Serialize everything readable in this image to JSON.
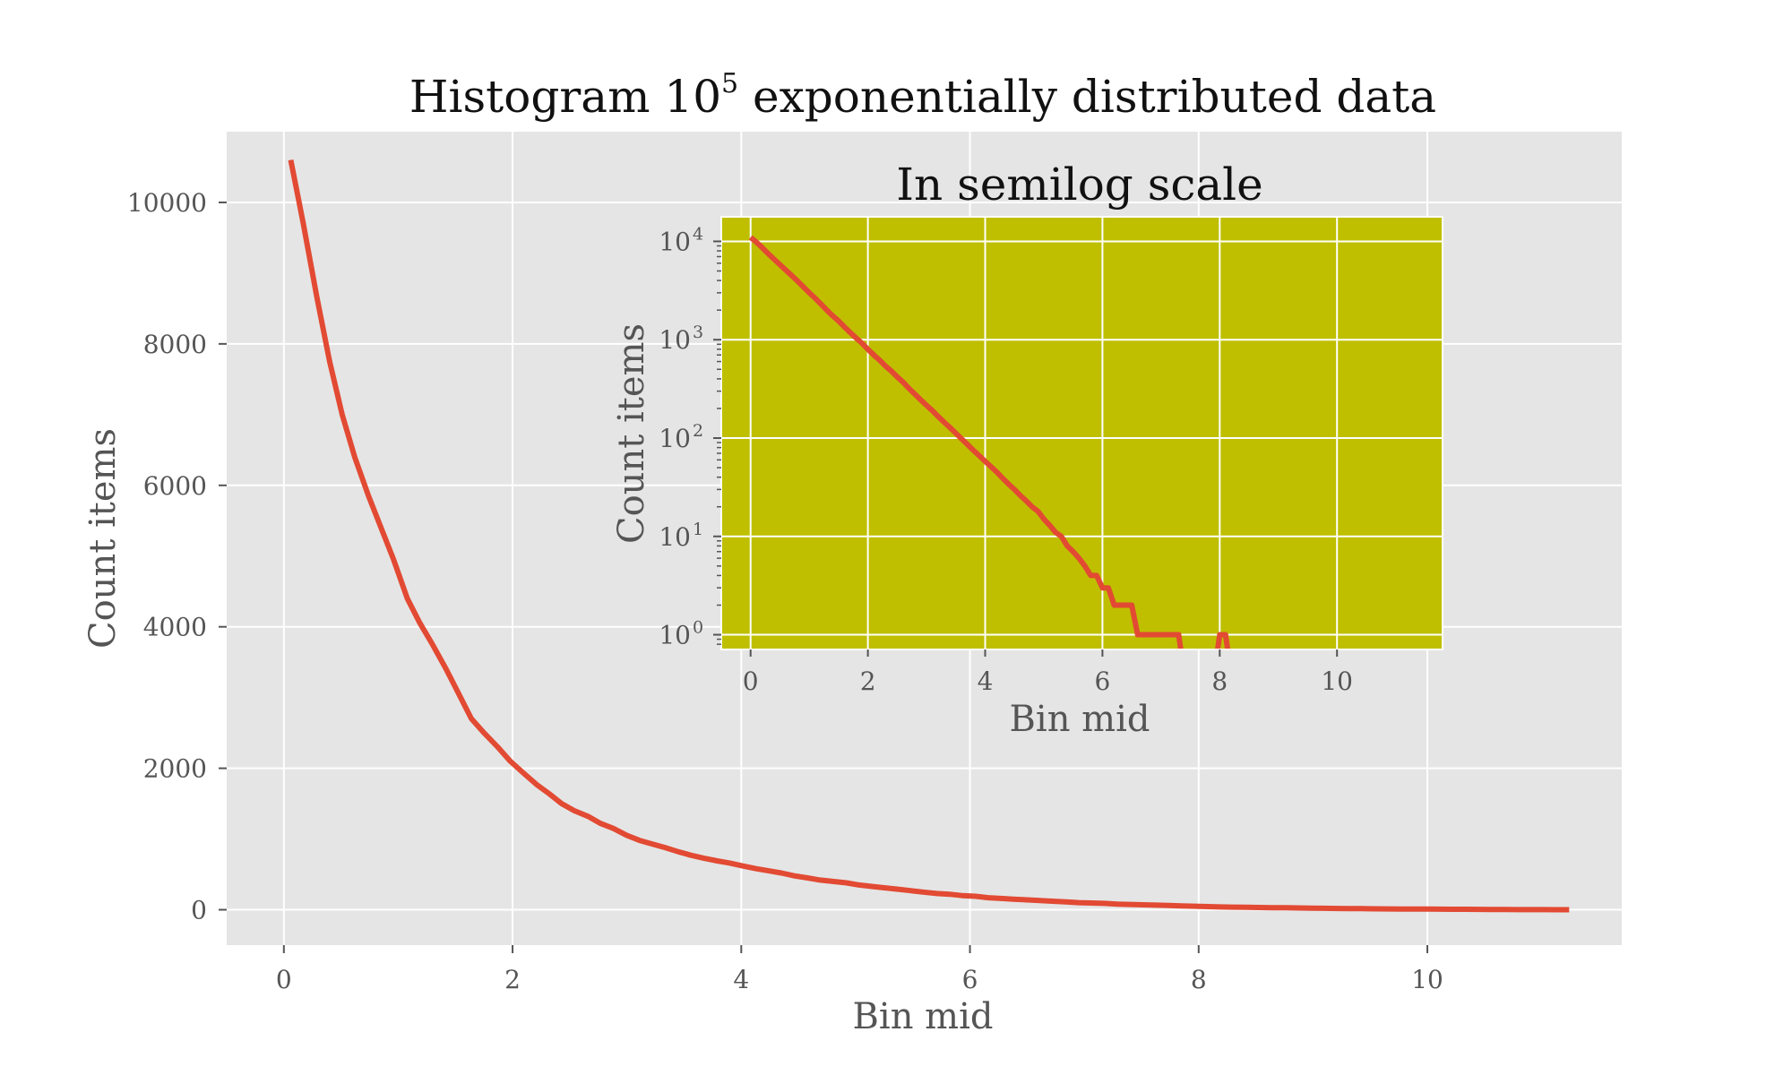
{
  "chart_data": [
    {
      "type": "line",
      "title": "Histogram 10",
      "title_superscript": "5",
      "title_rest": " exponentially distributed data",
      "xlabel": "Bin mid",
      "ylabel": "Count items",
      "xlim": [
        -0.5,
        11.7
      ],
      "ylim": [
        -500,
        11000
      ],
      "x_ticks": [
        0,
        2,
        4,
        6,
        8,
        10
      ],
      "x_tick_labels": [
        "0",
        "2",
        "4",
        "6",
        "8",
        "10"
      ],
      "y_ticks": [
        0,
        2000,
        4000,
        6000,
        8000,
        10000
      ],
      "y_tick_labels": [
        "0",
        "2000",
        "4000",
        "6000",
        "8000",
        "10000"
      ],
      "grid": true,
      "background": "#e5e5e5",
      "line_color": "#e24a33",
      "series": [
        {
          "x": [
            0.06,
            0.17,
            0.29,
            0.4,
            0.51,
            0.62,
            0.74,
            0.85,
            0.96,
            1.08,
            1.19,
            1.3,
            1.42,
            1.53,
            1.64,
            1.75,
            1.87,
            1.98,
            2.09,
            2.21,
            2.32,
            2.43,
            2.54,
            2.66,
            2.77,
            2.88,
            3.0,
            3.11,
            3.22,
            3.33,
            3.45,
            3.56,
            3.67,
            3.79,
            3.9,
            4.01,
            4.13,
            4.24,
            4.35,
            4.46,
            4.58,
            4.69,
            4.8,
            4.92,
            5.03,
            5.14,
            5.25,
            5.37,
            5.48,
            5.59,
            5.71,
            5.82,
            5.93,
            6.05,
            6.16,
            6.27,
            6.38,
            6.5,
            6.61,
            6.72,
            6.84,
            6.95,
            7.06,
            7.17,
            7.29,
            7.4,
            7.51,
            7.63,
            7.74,
            7.85,
            7.97,
            8.08,
            8.19,
            8.3,
            8.42,
            8.53,
            8.64,
            8.76,
            8.87,
            8.98,
            9.09,
            9.21,
            9.32,
            9.43,
            9.55,
            9.66,
            9.77,
            9.89,
            10.0,
            10.11,
            10.22,
            10.34,
            10.45,
            10.56,
            10.68,
            10.79,
            10.9,
            11.01,
            11.13,
            11.24
          ],
          "y": [
            10600,
            9700,
            8650,
            7750,
            7000,
            6400,
            5850,
            5400,
            4950,
            4400,
            4050,
            3750,
            3400,
            3050,
            2700,
            2500,
            2300,
            2100,
            1940,
            1770,
            1640,
            1500,
            1400,
            1320,
            1220,
            1150,
            1050,
            980,
            930,
            880,
            820,
            770,
            730,
            690,
            660,
            620,
            580,
            550,
            520,
            480,
            450,
            420,
            400,
            380,
            350,
            330,
            310,
            290,
            270,
            250,
            230,
            220,
            200,
            190,
            170,
            160,
            150,
            140,
            130,
            120,
            110,
            100,
            95,
            90,
            80,
            75,
            70,
            65,
            60,
            55,
            50,
            45,
            40,
            37,
            35,
            32,
            30,
            28,
            25,
            22,
            20,
            18,
            16,
            15,
            13,
            12,
            11,
            10,
            9,
            8,
            7,
            6,
            5,
            4,
            3,
            2,
            1,
            1,
            0,
            0
          ]
        }
      ]
    },
    {
      "type": "line",
      "title": "In semilog scale",
      "xlabel": "Bin mid",
      "ylabel": "Count items",
      "y_scale": "log",
      "xlim": [
        -0.5,
        11.8
      ],
      "ylim_log10": [
        -0.15,
        4.25
      ],
      "x_ticks": [
        0,
        2,
        4,
        6,
        8,
        10
      ],
      "x_tick_labels": [
        "0",
        "2",
        "4",
        "6",
        "8",
        "10"
      ],
      "y_ticks": [
        1,
        10,
        100,
        1000,
        10000
      ],
      "y_tick_bases": [
        "10",
        "10",
        "10",
        "10",
        "10"
      ],
      "y_tick_exponents": [
        "0",
        "1",
        "2",
        "3",
        "4"
      ],
      "grid": true,
      "background": "#bfbf00",
      "line_color": "#e24a33",
      "series": [
        {
          "x": [
            0.0,
            0.1,
            0.2,
            0.3,
            0.4,
            0.5,
            0.6,
            0.7,
            0.8,
            0.9,
            1.0,
            1.1,
            1.2,
            1.3,
            1.4,
            1.5,
            1.6,
            1.7,
            1.8,
            1.9,
            2.0,
            2.1,
            2.2,
            2.3,
            2.4,
            2.5,
            2.6,
            2.7,
            2.8,
            2.9,
            3.0,
            3.1,
            3.2,
            3.3,
            3.4,
            3.5,
            3.6,
            3.7,
            3.8,
            3.9,
            4.0,
            4.1,
            4.2,
            4.3,
            4.4,
            4.5,
            4.6,
            4.7,
            4.8,
            4.9,
            5.0,
            5.1,
            5.2,
            5.3,
            5.4,
            5.5,
            5.6,
            5.7,
            5.8,
            5.9,
            6.0,
            6.1,
            6.2,
            6.3,
            6.4,
            6.5,
            6.6,
            6.7,
            6.8,
            6.9,
            7.0,
            7.1,
            7.2,
            7.3,
            7.4,
            7.5,
            7.6,
            7.7,
            7.8,
            7.9,
            8.0,
            8.1,
            8.2,
            8.3,
            8.4,
            8.5,
            8.6,
            8.7,
            8.8,
            8.9,
            9.0,
            9.1,
            9.2,
            9.3,
            9.4,
            9.5,
            9.6,
            9.7,
            9.8,
            9.9,
            10.0,
            10.1,
            10.2,
            10.3,
            10.4,
            10.5,
            10.6,
            10.7,
            10.8,
            10.9,
            11.0,
            11.1,
            11.2
          ],
          "y": [
            11000,
            9800,
            8600,
            7500,
            6600,
            5800,
            5100,
            4500,
            3950,
            3450,
            3000,
            2650,
            2300,
            2000,
            1750,
            1550,
            1350,
            1180,
            1040,
            920,
            800,
            700,
            620,
            540,
            480,
            420,
            370,
            320,
            280,
            245,
            215,
            190,
            165,
            145,
            128,
            112,
            98,
            86,
            75,
            66,
            58,
            51,
            45,
            39,
            34,
            30,
            26,
            23,
            20,
            18,
            15,
            13,
            11,
            10,
            8,
            7,
            6,
            5,
            4,
            4,
            3,
            3,
            2,
            2,
            2,
            2,
            1,
            1,
            1,
            1,
            1,
            1,
            1,
            1,
            0,
            0,
            0,
            0,
            0,
            0,
            1,
            1,
            0,
            0,
            0,
            0,
            0,
            0,
            0,
            0,
            0,
            0,
            0,
            0,
            0,
            0,
            0,
            0,
            0,
            0,
            0,
            0,
            0,
            0,
            0,
            0,
            0,
            0,
            0,
            0,
            0,
            0,
            0
          ]
        }
      ]
    }
  ]
}
